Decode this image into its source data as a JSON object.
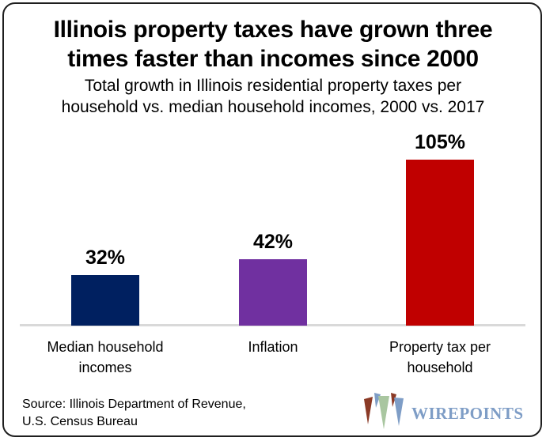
{
  "header": {
    "title": "Illinois property taxes have grown three\ntimes faster than incomes since 2000",
    "subtitle": "Total growth in Illinois residential property taxes per\nhousehold vs. median household incomes, 2000 vs. 2017"
  },
  "chart_data": {
    "type": "bar",
    "title": "Illinois property taxes have grown three times faster than incomes since 2000",
    "subtitle": "Total growth in Illinois residential property taxes per household vs. median household incomes, 2000 vs. 2017",
    "categories": [
      "Median household incomes",
      "Inflation",
      "Property tax per household"
    ],
    "values": [
      32,
      42,
      105
    ],
    "value_labels": [
      "32%",
      "42%",
      "105%"
    ],
    "bar_colors": [
      "#002060",
      "#7030A0",
      "#C00000"
    ],
    "xlabel": "",
    "ylabel": "",
    "ylim": [
      0,
      120
    ],
    "grid": false,
    "legend": false,
    "data_labels": true,
    "axis_line_color": "#D9D9D9"
  },
  "labels": {
    "category_lines": [
      "Median household\nincomes",
      "Inflation",
      "Property tax per\nhousehold"
    ],
    "value_labels": [
      "32%",
      "42%",
      "105%"
    ]
  },
  "footer": {
    "source": "Source: Illinois Department of Revenue,\nU.S. Census Bureau",
    "logo_text": "WIREPOINTS",
    "logo_colors": {
      "maroon": "#8B3A26",
      "green": "#A9C6A0",
      "blue": "#7E9DC6"
    }
  }
}
